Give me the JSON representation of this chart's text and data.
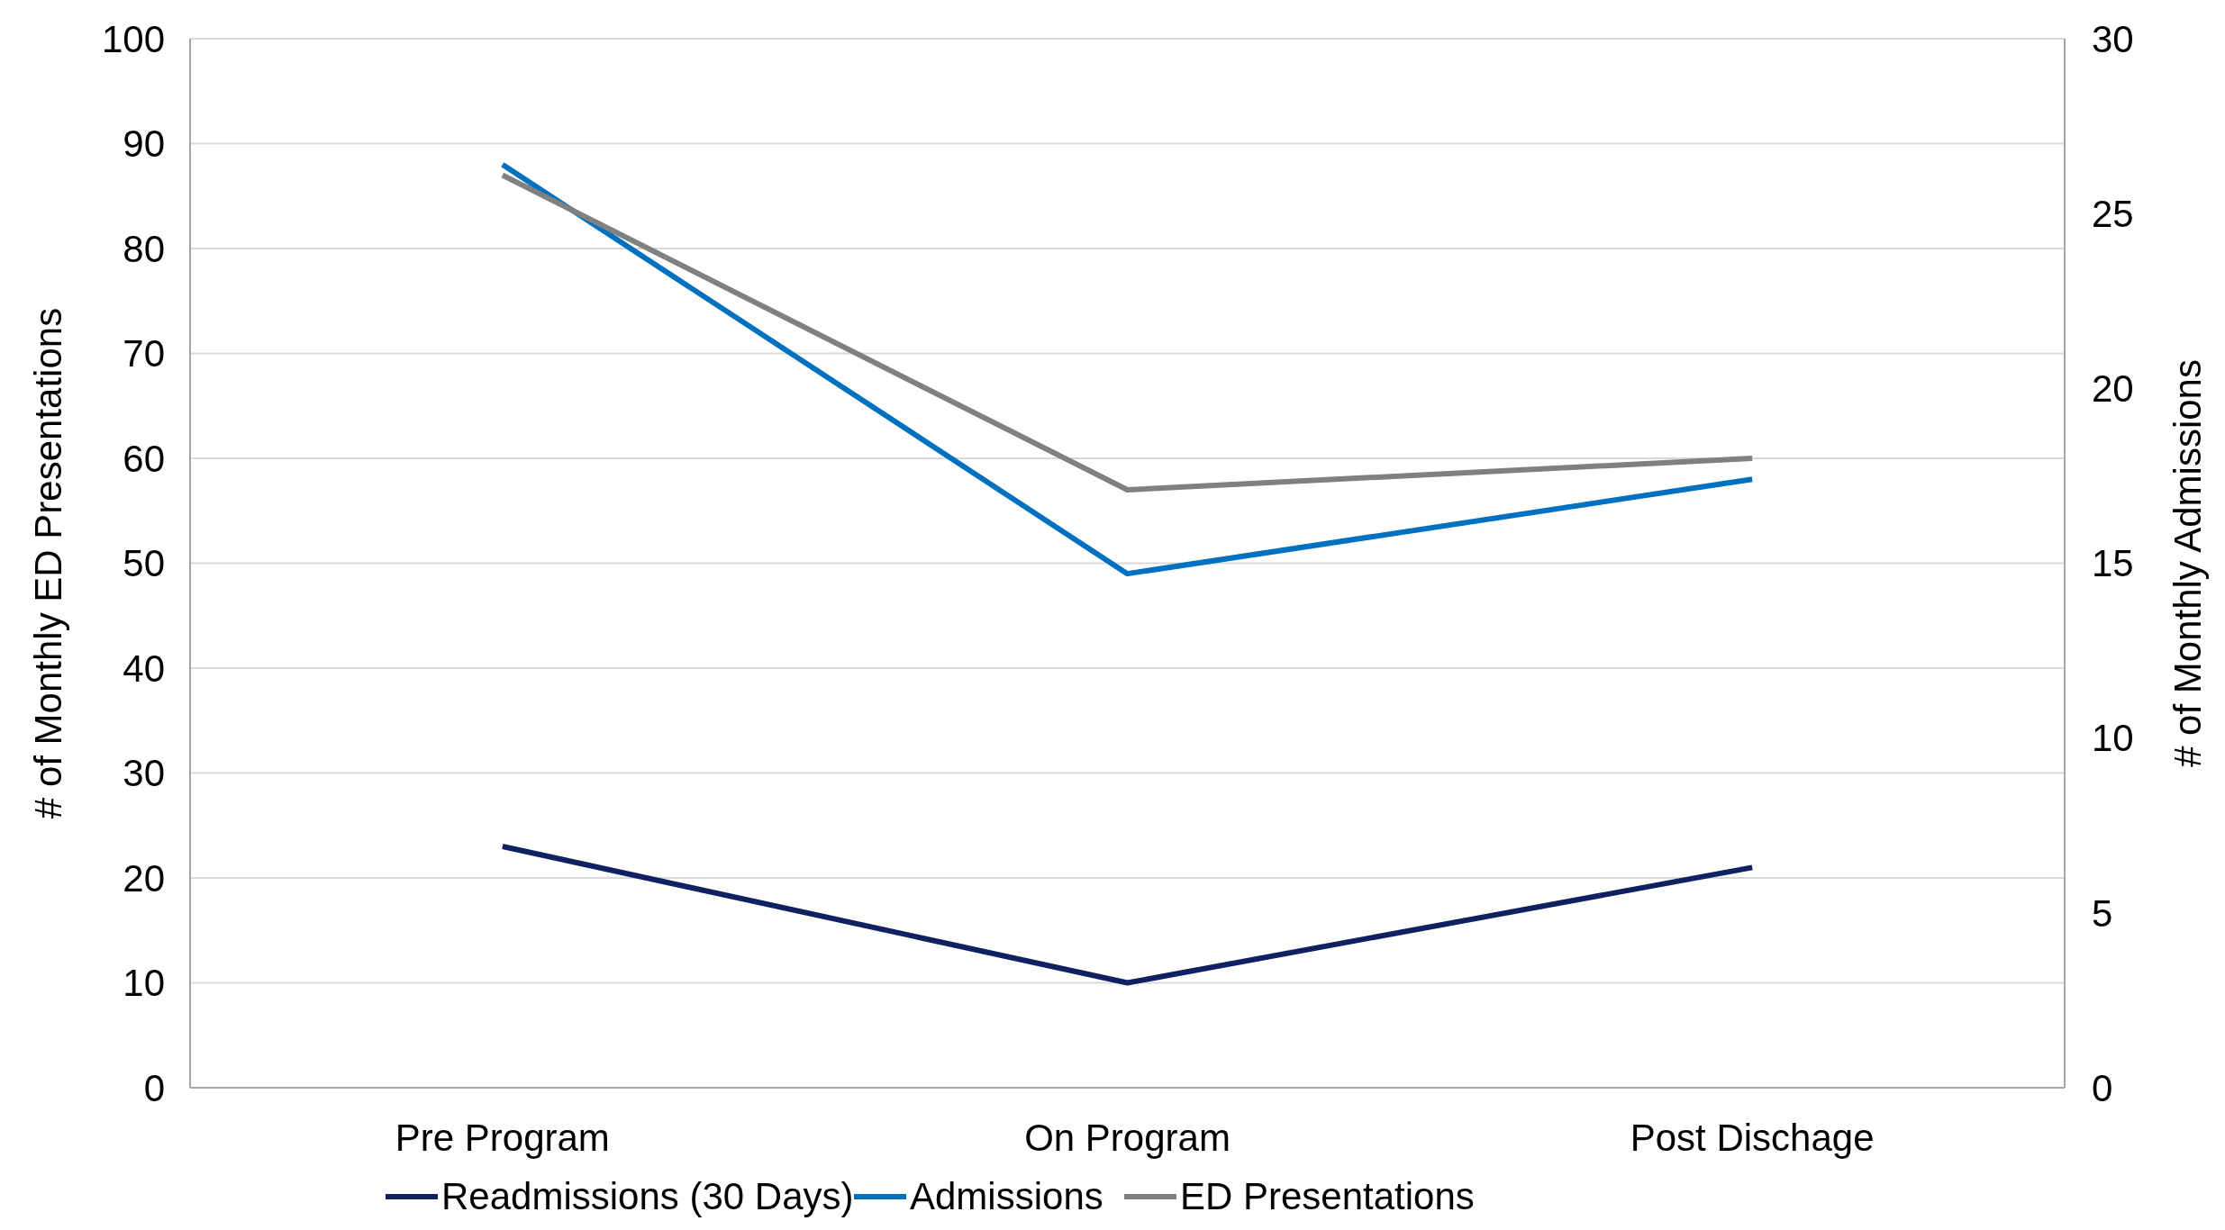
{
  "chart_data": {
    "type": "line",
    "categories": [
      "Pre Program",
      "On Program",
      "Post Dischage"
    ],
    "series": [
      {
        "name": "Readmissions (30 Days)",
        "color": "#0f2160",
        "values": [
          23,
          10,
          21
        ]
      },
      {
        "name": "Admissions",
        "color": "#0070c0",
        "values": [
          88,
          49,
          58
        ]
      },
      {
        "name": "ED Presentations",
        "color": "#808080",
        "values": [
          87,
          57,
          60
        ]
      }
    ],
    "ylabel": "# of Monthly ED Presentations",
    "y2label": "# of Monthly Admissions",
    "ylim": [
      0,
      100
    ],
    "yticks": [
      0,
      10,
      20,
      30,
      40,
      50,
      60,
      70,
      80,
      90,
      100
    ],
    "y2lim": [
      0,
      30
    ],
    "y2ticks": [
      0,
      5,
      10,
      15,
      20,
      25,
      30
    ],
    "grid": "y",
    "legend": "bottom",
    "marker": "none",
    "line_style": "solid"
  }
}
